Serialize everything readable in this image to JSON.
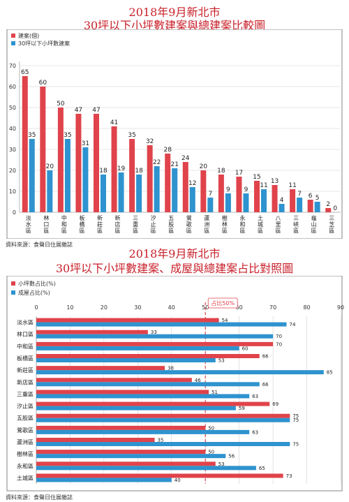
{
  "titles": {
    "top_line1": "2018年9月新北市",
    "top_line2": "30坪以下小坪數建案與總建案比較圖",
    "bottom_line1": "2018年9月新北市",
    "bottom_line2": "30坪以下小坪數建案、成屋與總建案占比對照圖"
  },
  "source": {
    "top": "資料來源：食聲日住展雜誌",
    "bottom": "資料來源：食聲日住展雜誌"
  },
  "colors": {
    "red": "#e0434b",
    "blue": "#2e93cf",
    "dashed": "#e0434b"
  },
  "chart_data": [
    {
      "type": "bar",
      "legend": [
        "建案(個)",
        "30坪以下小坪數建案"
      ],
      "categories": [
        "淡水區",
        "林口區",
        "中和區",
        "板橋區",
        "新莊區",
        "新店區",
        "三重區",
        "汐止區",
        "五股區",
        "鶯歌區",
        "蘆洲區",
        "樹林區",
        "永和區",
        "土城區",
        "八里區",
        "三峽區",
        "龜山區",
        "三芝區"
      ],
      "series": [
        {
          "name": "建案(個)",
          "values": [
            65,
            60,
            50,
            47,
            47,
            41,
            35,
            32,
            28,
            24,
            20,
            18,
            17,
            15,
            13,
            11,
            6,
            2
          ]
        },
        {
          "name": "30坪以下小坪數建案",
          "values": [
            35,
            20,
            35,
            31,
            18,
            19,
            18,
            22,
            21,
            12,
            7,
            9,
            9,
            11,
            4,
            7,
            5,
            0
          ]
        }
      ],
      "ylim": [
        0,
        70
      ],
      "yticks": [
        0,
        10,
        20,
        30,
        40,
        50,
        60,
        70
      ],
      "grid": true,
      "legend_position": "top-left"
    },
    {
      "type": "bar",
      "orientation": "horizontal",
      "legend": [
        "小坪數占比(%)",
        "成屋占比(%)"
      ],
      "categories": [
        "淡水區",
        "林口區",
        "中和區",
        "板橋區",
        "新莊區",
        "新店區",
        "三重區",
        "汐止區",
        "五股區",
        "鶯歌區",
        "蘆洲區",
        "樹林區",
        "永和區",
        "土城區"
      ],
      "series": [
        {
          "name": "小坪數占比(%)",
          "values": [
            54,
            33,
            70,
            66,
            38,
            46,
            51,
            69,
            75,
            50,
            35,
            50,
            53,
            73
          ]
        },
        {
          "name": "成屋占比(%)",
          "values": [
            74,
            70,
            60,
            53,
            85,
            66,
            63,
            59,
            75,
            63,
            75,
            56,
            65,
            40
          ]
        }
      ],
      "xlim": [
        0,
        90
      ],
      "xticks": [
        0,
        10,
        20,
        30,
        40,
        50,
        60,
        70,
        80,
        90
      ],
      "reference_line": {
        "value": 50,
        "label": "占比50%"
      },
      "grid": true,
      "legend_position": "top-left"
    }
  ]
}
